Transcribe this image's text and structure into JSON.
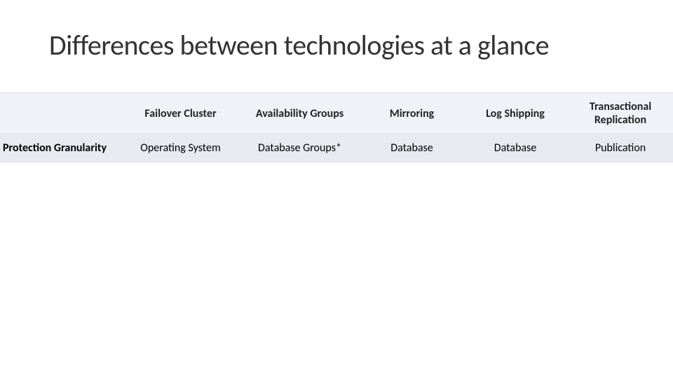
{
  "title": "Differences between technologies at a glance",
  "table": {
    "type": "table",
    "header_bg": "#f1f2f8",
    "body_bg": "#e8eaf2",
    "border_color": "#dcdde8",
    "header_font_weight": 700,
    "rowlabel_font_weight": 700,
    "body_font_weight": 400,
    "font_size_pt": 12,
    "columns": [
      {
        "id": "rowlabel",
        "label": ""
      },
      {
        "id": "failover",
        "label": "Failover Cluster"
      },
      {
        "id": "ag",
        "label": "Availability Groups"
      },
      {
        "id": "mirroring",
        "label": "Mirroring"
      },
      {
        "id": "logship",
        "label": "Log Shipping"
      },
      {
        "id": "transrepl",
        "label": "Transactional Replication"
      }
    ],
    "rows": [
      {
        "label": "Protection Granularity",
        "cells": [
          "Operating System",
          "Database Groups*",
          "Database",
          "Database",
          "Publication"
        ]
      }
    ]
  }
}
